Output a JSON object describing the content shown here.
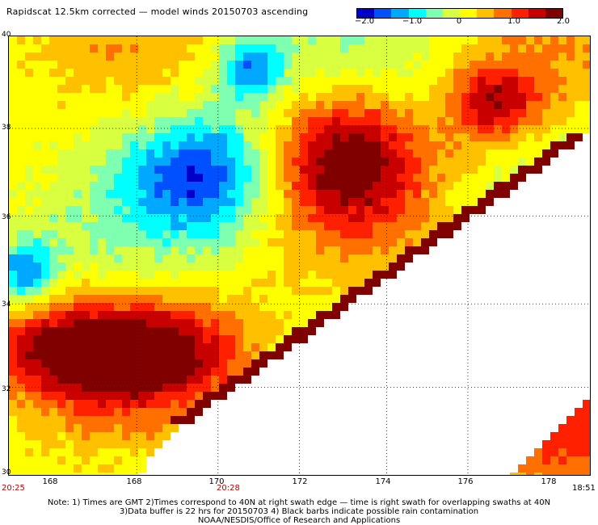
{
  "title": "Rapidscat 12.5km corrected — model winds 20150703 ascending",
  "colorbar": {
    "labels": [
      "−2.0",
      "−1.0",
      "0",
      "1.0",
      "2.0"
    ],
    "colors": [
      "#0000c8",
      "#0050ff",
      "#00a8ff",
      "#00ffff",
      "#7fffb0",
      "#d8ff40",
      "#ffff00",
      "#ffc000",
      "#ff7000",
      "#ff2000",
      "#c80000",
      "#800000"
    ]
  },
  "axes": {
    "y_labels": [
      "40",
      "38",
      "36",
      "34",
      "32",
      "30"
    ],
    "x_labels": [
      "168",
      "168",
      "170",
      "172",
      "174",
      "176",
      "178"
    ]
  },
  "times": {
    "left": "20:25",
    "middle": "20:28",
    "right": "18:51"
  },
  "notes": {
    "line1": "Note: 1) Times are GMT 2)Times correspond to 40N at right swath edge — time is right swath for overlapping swaths at 40N",
    "line2": "3)Data buffer is 22 hrs for 20150703 4) Black barbs indicate possible rain contamination",
    "line3": "NOAA/NESDIS/Office of Research and Applications"
  }
}
